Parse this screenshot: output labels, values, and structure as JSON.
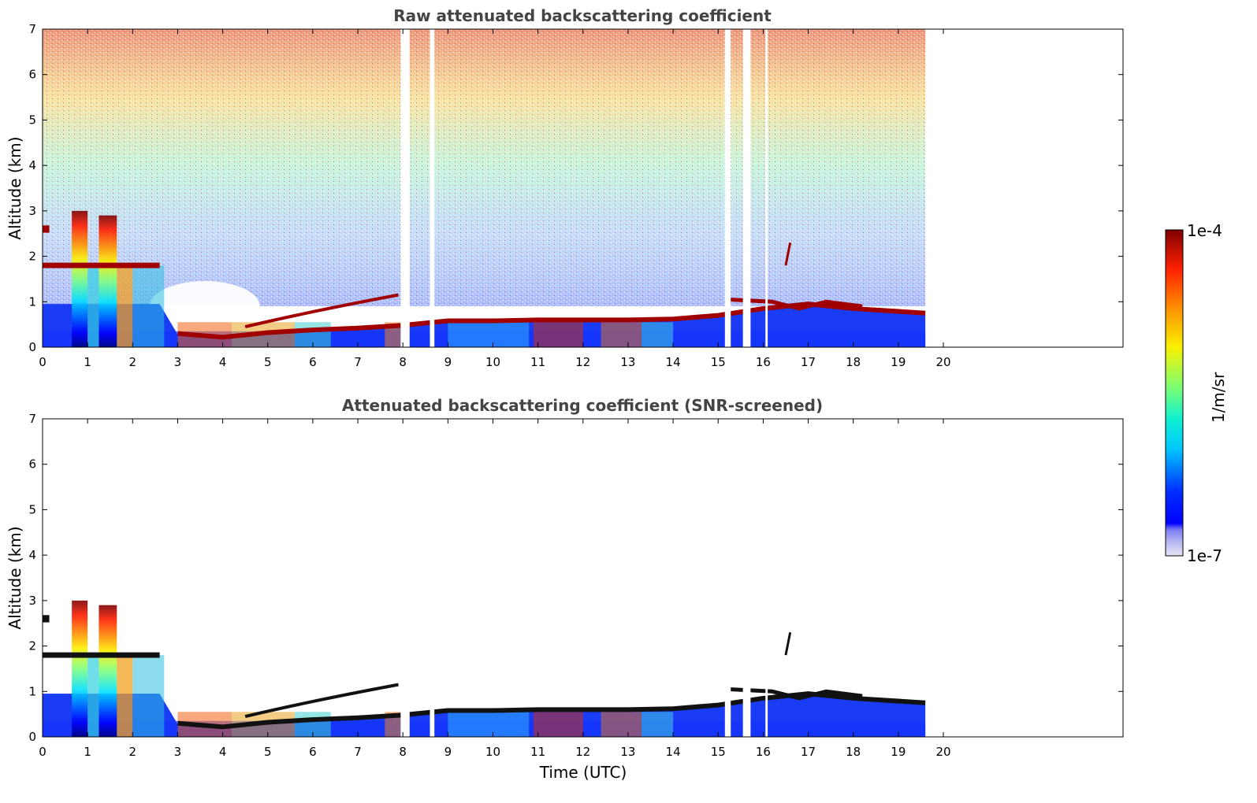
{
  "chart_data": [
    {
      "type": "heatmap",
      "title": "Raw attenuated backscattering coefficient",
      "xlabel": "",
      "ylabel": "Altitude (km)",
      "xlim": [
        0,
        24
      ],
      "ylim": [
        0,
        7
      ],
      "x_ticks": [
        "0",
        "1",
        "2",
        "3",
        "4",
        "5",
        "6",
        "7",
        "8",
        "9",
        "10",
        "11",
        "12",
        "13",
        "14",
        "15",
        "16",
        "17",
        "18",
        "19",
        "20"
      ],
      "y_ticks": [
        "0",
        "1",
        "2",
        "3",
        "4",
        "5",
        "6",
        "7"
      ],
      "data_end_time": 19.6,
      "missing_time_gaps": [
        [
          7.95,
          8.15
        ],
        [
          8.6,
          8.7
        ],
        [
          15.15,
          15.28
        ],
        [
          15.55,
          15.72
        ],
        [
          16.05,
          16.1
        ]
      ],
      "colorscale": "jet",
      "features": [
        {
          "name": "cloud layer",
          "time_range": [
            0,
            2.6
          ],
          "altitude_km": 1.8
        },
        {
          "name": "cloud top",
          "time_range": [
            0,
            0.15
          ],
          "altitude_km": 2.6
        },
        {
          "name": "precipitation column",
          "time_range": [
            0.65,
            1.0
          ],
          "altitude_range": [
            0,
            3.0
          ]
        },
        {
          "name": "precipitation column",
          "time_range": [
            1.25,
            1.65
          ],
          "altitude_range": [
            0,
            2.9
          ]
        },
        {
          "name": "boundary layer top",
          "time": [
            3,
            4,
            5,
            6,
            7,
            8,
            9,
            10,
            11,
            12,
            13,
            14,
            15,
            16,
            17,
            18,
            19.6
          ],
          "altitude_km": [
            0.3,
            0.22,
            0.32,
            0.38,
            0.42,
            0.48,
            0.58,
            0.58,
            0.6,
            0.6,
            0.6,
            0.62,
            0.7,
            0.85,
            0.95,
            0.85,
            0.75
          ]
        },
        {
          "name": "elevated layer",
          "time_range": [
            4.5,
            8.0
          ],
          "altitude_km_range": [
            0.45,
            1.2
          ]
        }
      ]
    },
    {
      "type": "heatmap",
      "title": "Attenuated backscattering coefficient (SNR-screened)",
      "xlabel": "Time (UTC)",
      "ylabel": "Altitude (km)",
      "xlim": [
        0,
        24
      ],
      "ylim": [
        0,
        7
      ],
      "x_ticks": [
        "0",
        "1",
        "2",
        "3",
        "4",
        "5",
        "6",
        "7",
        "8",
        "9",
        "10",
        "11",
        "12",
        "13",
        "14",
        "15",
        "16",
        "17",
        "18",
        "19",
        "20"
      ],
      "y_ticks": [
        "0",
        "1",
        "2",
        "3",
        "4",
        "5",
        "6",
        "7"
      ],
      "data_end_time": 19.6,
      "missing_time_gaps": [
        [
          7.95,
          8.15
        ],
        [
          8.6,
          8.7
        ],
        [
          15.15,
          15.28
        ],
        [
          15.55,
          15.72
        ],
        [
          16.05,
          16.1
        ]
      ],
      "colorscale": "jet"
    }
  ],
  "colorbar": {
    "max_label": "1e-4",
    "min_label": "1e-7",
    "unit_label": "1/m/sr",
    "scale": "log"
  }
}
